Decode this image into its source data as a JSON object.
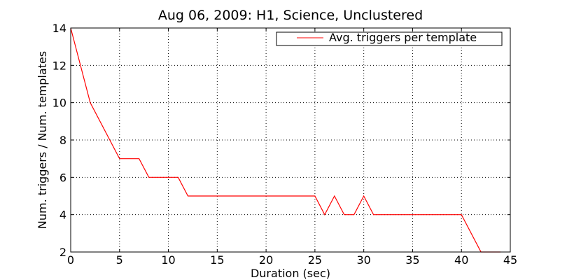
{
  "chart_data": {
    "type": "line",
    "title": "Aug 06, 2009: H1, Science, Unclustered",
    "xlabel": "Duration (sec)",
    "ylabel": "Num. triggers / Num. templates",
    "xlim": [
      0,
      45
    ],
    "ylim": [
      2,
      14
    ],
    "xticks": [
      "0",
      "5",
      "10",
      "15",
      "20",
      "25",
      "30",
      "35",
      "40",
      "45"
    ],
    "yticks": [
      "2",
      "4",
      "6",
      "8",
      "10",
      "12",
      "14"
    ],
    "grid": true,
    "legend_position": "top-right",
    "series": [
      {
        "name": "Avg. triggers per template",
        "color": "#ff0000",
        "x": [
          0,
          2,
          5,
          7,
          8,
          9,
          10,
          11,
          12,
          13,
          14,
          15,
          16,
          17,
          18,
          19,
          20,
          21,
          22,
          23,
          24,
          25,
          26,
          27,
          28,
          29,
          30,
          31,
          32,
          33,
          34,
          35,
          36,
          37,
          38,
          39,
          40,
          42,
          44
        ],
        "y": [
          14,
          10,
          7,
          7,
          6,
          6,
          6,
          6,
          5,
          5,
          5,
          5,
          5,
          5,
          5,
          5,
          5,
          5,
          5,
          5,
          5,
          5,
          4,
          5,
          4,
          4,
          5,
          4,
          4,
          4,
          4,
          4,
          4,
          4,
          4,
          4,
          4,
          2,
          2
        ]
      }
    ]
  }
}
